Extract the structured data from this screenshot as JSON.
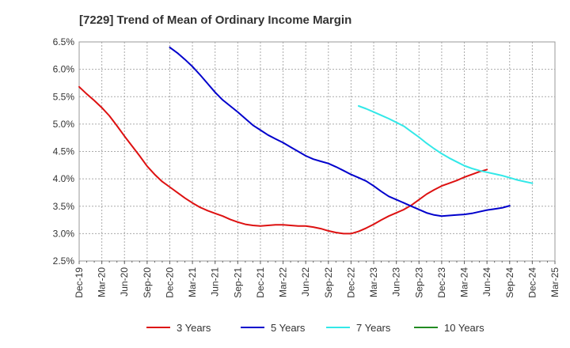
{
  "chart_data": {
    "type": "line",
    "title": "[7229]  Trend of Mean of Ordinary Income Margin",
    "xlabel": "",
    "ylabel": "",
    "ylim": [
      2.5,
      6.5
    ],
    "y_ticks": [
      "6.5%",
      "6.0%",
      "5.5%",
      "5.0%",
      "4.5%",
      "4.0%",
      "3.5%",
      "3.0%",
      "2.5%"
    ],
    "y_tick_values": [
      6.5,
      6.0,
      5.5,
      5.0,
      4.5,
      4.0,
      3.5,
      3.0,
      2.5
    ],
    "x_ticks": [
      "Dec-19",
      "Mar-20",
      "Jun-20",
      "Sep-20",
      "Dec-20",
      "Mar-21",
      "Jun-21",
      "Sep-21",
      "Dec-21",
      "Mar-22",
      "Jun-22",
      "Sep-22",
      "Dec-22",
      "Mar-23",
      "Jun-23",
      "Sep-23",
      "Dec-23",
      "Mar-24",
      "Jun-24",
      "Sep-24",
      "Dec-24",
      "Mar-25"
    ],
    "grid": true,
    "legend_position": "bottom",
    "series": [
      {
        "name": "3 Years",
        "color": "#dd1111",
        "values": [
          5.68,
          5.55,
          5.43,
          5.3,
          5.15,
          4.97,
          4.78,
          4.6,
          4.42,
          4.23,
          4.08,
          3.95,
          3.85,
          3.75,
          3.65,
          3.56,
          3.48,
          3.42,
          3.37,
          3.32,
          3.26,
          3.21,
          3.17,
          3.15,
          3.14,
          3.15,
          3.16,
          3.16,
          3.15,
          3.14,
          3.14,
          3.12,
          3.09,
          3.05,
          3.02,
          3.0,
          3.0,
          3.04,
          3.1,
          3.17,
          3.25,
          3.32,
          3.38,
          3.44,
          3.52,
          3.62,
          3.72,
          3.8,
          3.87,
          3.92,
          3.97,
          4.03,
          4.08,
          4.13,
          4.17
        ]
      },
      {
        "name": "5 Years",
        "color": "#0000cc",
        "values": [
          null,
          null,
          null,
          null,
          null,
          null,
          null,
          null,
          null,
          null,
          null,
          null,
          6.4,
          6.3,
          6.18,
          6.05,
          5.9,
          5.74,
          5.58,
          5.44,
          5.33,
          5.22,
          5.1,
          4.98,
          4.89,
          4.8,
          4.73,
          4.66,
          4.58,
          4.5,
          4.42,
          4.36,
          4.32,
          4.28,
          4.22,
          4.15,
          4.08,
          4.02,
          3.96,
          3.87,
          3.77,
          3.68,
          3.62,
          3.56,
          3.5,
          3.44,
          3.38,
          3.34,
          3.32,
          3.33,
          3.34,
          3.35,
          3.37,
          3.4,
          3.43,
          3.45,
          3.47,
          3.51
        ]
      },
      {
        "name": "7 Years",
        "color": "#33e8e8",
        "values": [
          5.33,
          5.28,
          5.22,
          5.16,
          5.1,
          5.03,
          4.96,
          4.86,
          4.76,
          4.65,
          4.55,
          4.46,
          4.38,
          4.31,
          4.24,
          4.19,
          4.15,
          4.12,
          4.09,
          4.06,
          4.02,
          3.98,
          3.95,
          3.92
        ]
      },
      {
        "name": "10 Years",
        "color": "#228b22",
        "values": []
      }
    ]
  }
}
